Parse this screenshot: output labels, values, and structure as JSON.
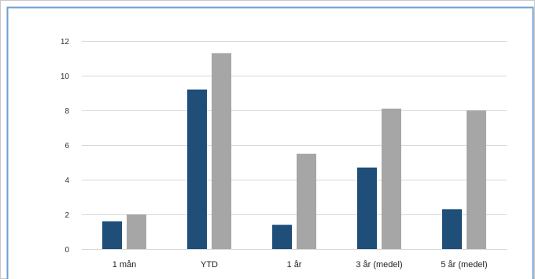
{
  "chart_data": {
    "type": "bar",
    "title": "",
    "xlabel": "",
    "ylabel": "",
    "categories": [
      "1 mån",
      "YTD",
      "1 år",
      "3 år (medel)",
      "5 år (medel)"
    ],
    "series": [
      {
        "values": [
          1.6,
          9.2,
          1.4,
          4.7,
          2.3
        ],
        "color": "#1f4e79"
      },
      {
        "values": [
          2.0,
          11.3,
          5.5,
          8.1,
          8.0
        ],
        "color": "#a6a6a6"
      }
    ],
    "ylim": [
      0,
      12
    ],
    "yticks": [
      "0",
      "2",
      "4",
      "6",
      "8",
      "10",
      "12"
    ],
    "grid": true,
    "legend": "none",
    "frame_color": "#6e9fd0",
    "grid_color": "#d9d9d9"
  }
}
